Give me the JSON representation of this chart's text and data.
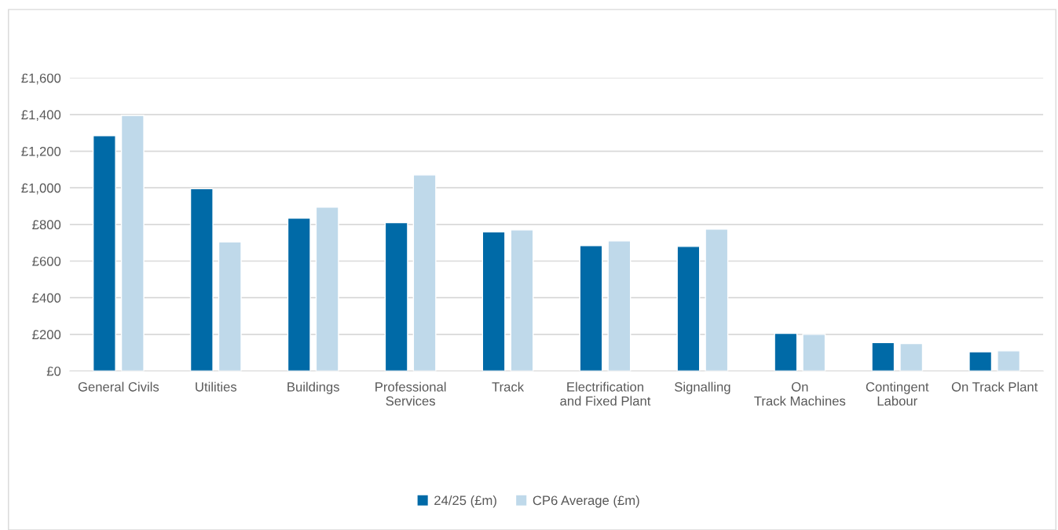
{
  "chart_data": {
    "type": "bar",
    "categories": [
      "General Civils",
      "Utilities",
      "Buildings",
      "Professional Services",
      "Track",
      "Electrification and Fixed Plant",
      "Signalling",
      "On Track Machines",
      "Contingent Labour",
      "On Track Plant"
    ],
    "series": [
      {
        "name": "24/25 (£m)",
        "color": "#006aa7",
        "values": [
          1285,
          995,
          835,
          810,
          760,
          685,
          680,
          205,
          155,
          105
        ]
      },
      {
        "name": "CP6 Average (£m)",
        "color": "#bfd9ea",
        "values": [
          1395,
          705,
          895,
          1070,
          770,
          710,
          775,
          200,
          150,
          110
        ]
      }
    ],
    "ylim": [
      0,
      1600
    ],
    "yticks": [
      {
        "value": 0,
        "label": "£0"
      },
      {
        "value": 200,
        "label": "£200"
      },
      {
        "value": 400,
        "label": "£400"
      },
      {
        "value": 600,
        "label": "£600"
      },
      {
        "value": 800,
        "label": "£800"
      },
      {
        "value": 1000,
        "label": "£1,000"
      },
      {
        "value": 1200,
        "label": "£1,200"
      },
      {
        "value": 1400,
        "label": "£1,400"
      },
      {
        "value": 1600,
        "label": "£1,600"
      }
    ],
    "grid": "y",
    "legend": "bottom"
  }
}
